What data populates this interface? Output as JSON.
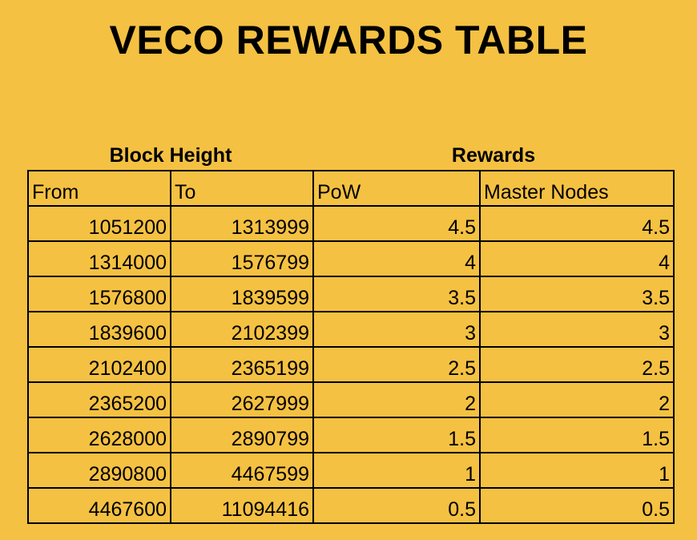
{
  "title": "VECO REWARDS TABLE",
  "group_headers": {
    "block_height": "Block Height",
    "rewards": "Rewards"
  },
  "columns": [
    "From",
    "To",
    "PoW",
    "Master Nodes"
  ],
  "rows": [
    [
      "1051200",
      "1313999",
      "4.5",
      "4.5"
    ],
    [
      "1314000",
      "1576799",
      "4",
      "4"
    ],
    [
      "1576800",
      "1839599",
      "3.5",
      "3.5"
    ],
    [
      "1839600",
      "2102399",
      "3",
      "3"
    ],
    [
      "2102400",
      "2365199",
      "2.5",
      "2.5"
    ],
    [
      "2365200",
      "2627999",
      "2",
      "2"
    ],
    [
      "2628000",
      "2890799",
      "1.5",
      "1.5"
    ],
    [
      "2890800",
      "4467599",
      "1",
      "1"
    ],
    [
      "4467600",
      "11094416",
      "0.5",
      "0.5"
    ]
  ],
  "colors": {
    "background": "#F4C142",
    "text": "#000000",
    "border": "#000000"
  }
}
